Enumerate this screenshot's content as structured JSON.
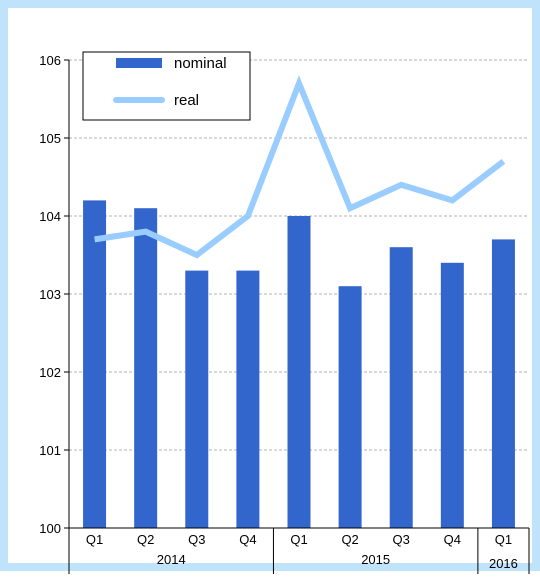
{
  "chart_data": {
    "type": "bar",
    "title": "",
    "xlabel": "",
    "ylabel": "",
    "ylim": [
      100,
      106
    ],
    "yticks": [
      100,
      101,
      102,
      103,
      104,
      105,
      106
    ],
    "grid": true,
    "legend_position": "top-left",
    "categories": [
      "Q1",
      "Q2",
      "Q3",
      "Q4",
      "Q1",
      "Q2",
      "Q3",
      "Q4",
      "Q1"
    ],
    "year_groups": [
      {
        "label": "2014",
        "count": 4
      },
      {
        "label": "2015",
        "count": 4
      },
      {
        "label": "2016",
        "count": 1
      }
    ],
    "series": [
      {
        "name": "nominal",
        "kind": "bar",
        "color": "#3366cc",
        "values": [
          104.2,
          104.1,
          103.3,
          103.3,
          104.0,
          103.1,
          103.6,
          103.4,
          103.7
        ]
      },
      {
        "name": "real",
        "kind": "line",
        "color": "#99ccff",
        "values": [
          103.7,
          103.8,
          103.5,
          104.0,
          105.7,
          104.1,
          104.4,
          104.2,
          104.7
        ]
      }
    ]
  }
}
